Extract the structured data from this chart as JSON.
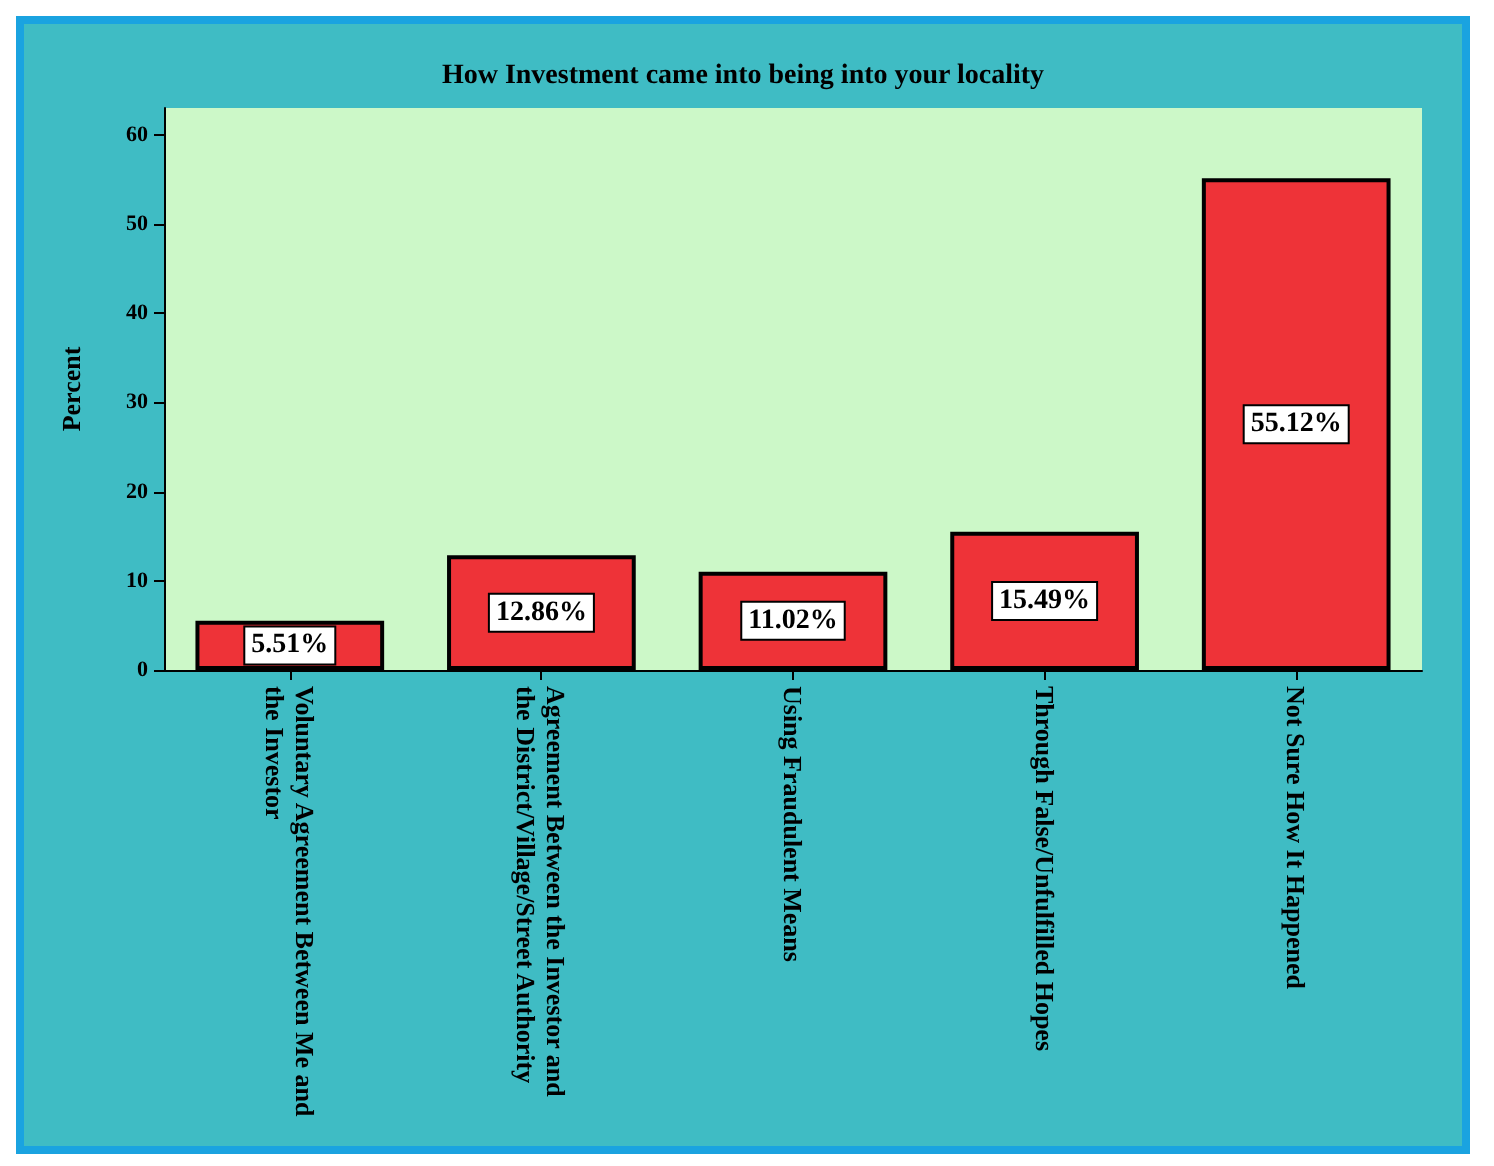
{
  "chart_data": {
    "type": "bar",
    "title": "How Investment came into being into your locality",
    "ylabel": "Percent",
    "categories": [
      "Voluntary Agreement Between Me and the Investor",
      "Agreement Between the Investor and the District/Village/Street Authority",
      "Using Fraudulent Means",
      "Through False/Unfulfilled Hopes",
      "Not Sure How It Happened"
    ],
    "values": [
      5.51,
      12.86,
      11.02,
      15.49,
      55.12
    ],
    "value_labels": [
      "5.51%",
      "12.86%",
      "11.02%",
      "15.49%",
      "55.12%"
    ],
    "color": "#ee3338",
    "ylim": [
      0,
      63
    ],
    "yticks": [
      0,
      10,
      20,
      30,
      40,
      50,
      60
    ],
    "grid": false
  }
}
